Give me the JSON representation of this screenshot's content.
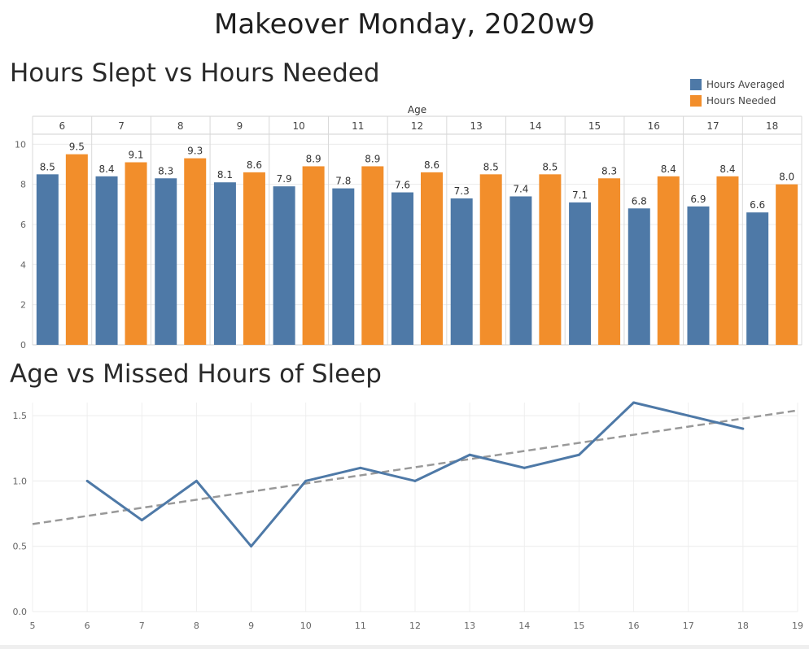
{
  "page": {
    "title": "Makeover Monday, 2020w9"
  },
  "chart_data": [
    {
      "type": "bar",
      "title": "Hours Slept vs Hours Needed",
      "header_label": "Age",
      "categories": [
        "6",
        "7",
        "8",
        "9",
        "10",
        "11",
        "12",
        "13",
        "14",
        "15",
        "16",
        "17",
        "18"
      ],
      "series": [
        {
          "name": "Hours Averaged",
          "color": "#4e79a7",
          "values": [
            8.5,
            8.4,
            8.3,
            8.1,
            7.9,
            7.8,
            7.6,
            7.3,
            7.4,
            7.1,
            6.8,
            6.9,
            6.6
          ]
        },
        {
          "name": "Hours Needed",
          "color": "#f28e2b",
          "values": [
            9.5,
            9.1,
            9.3,
            8.6,
            8.9,
            8.9,
            8.6,
            8.5,
            8.5,
            8.3,
            8.4,
            8.4,
            8.0
          ]
        }
      ],
      "data_labels": [
        [
          "8.5",
          "8.4",
          "8.3",
          "8.1",
          "7.9",
          "7.8",
          "7.6",
          "7.3",
          "7.4",
          "7.1",
          "6.8",
          "6.9",
          "6.6"
        ],
        [
          "9.5",
          "9.1",
          "9.3",
          "8.6",
          "8.9",
          "8.9",
          "8.6",
          "8.5",
          "8.5",
          "8.3",
          "8.4",
          "8.4",
          "8.0"
        ]
      ],
      "y_ticks": [
        "0",
        "2",
        "4",
        "6",
        "8",
        "10"
      ],
      "ylim": [
        0,
        10.5
      ],
      "legend_position": "top-right"
    },
    {
      "type": "line",
      "title": "Age vs Missed Hours of Sleep",
      "x": [
        6,
        7,
        8,
        9,
        10,
        11,
        12,
        13,
        14,
        15,
        16,
        17,
        18
      ],
      "series": [
        {
          "color": "#4e79a7",
          "values": [
            1.0,
            0.7,
            1.0,
            0.5,
            1.0,
            1.1,
            1.0,
            1.2,
            1.1,
            1.2,
            1.6,
            1.5,
            1.4
          ]
        }
      ],
      "trend_line": {
        "color": "#999999",
        "style": "dashed",
        "x": [
          5,
          19
        ],
        "y": [
          0.67,
          1.54
        ]
      },
      "x_ticks": [
        "5",
        "6",
        "7",
        "8",
        "9",
        "10",
        "11",
        "12",
        "13",
        "14",
        "15",
        "16",
        "17",
        "18",
        "19"
      ],
      "y_ticks": [
        "0.0",
        "0.5",
        "1.0",
        "1.5"
      ],
      "xlim": [
        5,
        19
      ],
      "ylim": [
        0,
        1.6
      ],
      "grid": true
    }
  ]
}
